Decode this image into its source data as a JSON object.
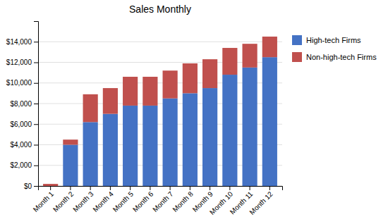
{
  "chart_data": {
    "type": "bar",
    "title": "Sales Monthly",
    "categories": [
      "Month 1",
      "Month 2",
      "Month 3",
      "Month 4",
      "Month 5",
      "Month 6",
      "Month 7",
      "Month 8",
      "Month 9",
      "Month 10",
      "Month 11",
      "Month 12"
    ],
    "series": [
      {
        "name": "High-tech Firms",
        "color": "#4472C4",
        "values": [
          0,
          4000,
          6200,
          7000,
          7800,
          7800,
          8500,
          9000,
          9500,
          10800,
          11500,
          12500
        ]
      },
      {
        "name": "Non-high-tech Firms",
        "color": "#C0504D",
        "values": [
          200,
          500,
          2700,
          2500,
          2800,
          2800,
          2700,
          2900,
          2800,
          2600,
          2300,
          2000
        ]
      }
    ],
    "stacked": true,
    "ylim": [
      0,
      16000
    ],
    "yticks": [
      {
        "value": 0,
        "label": "$0"
      },
      {
        "value": 2000,
        "label": "$2,000"
      },
      {
        "value": 4000,
        "label": "$4,000"
      },
      {
        "value": 6000,
        "label": "$6,000"
      },
      {
        "value": 8000,
        "label": "$8,000"
      },
      {
        "value": 10000,
        "label": "$10,000"
      },
      {
        "value": 12000,
        "label": "$12,000"
      },
      {
        "value": 14000,
        "label": "$14,000"
      }
    ],
    "grid": true,
    "legend": "right"
  }
}
